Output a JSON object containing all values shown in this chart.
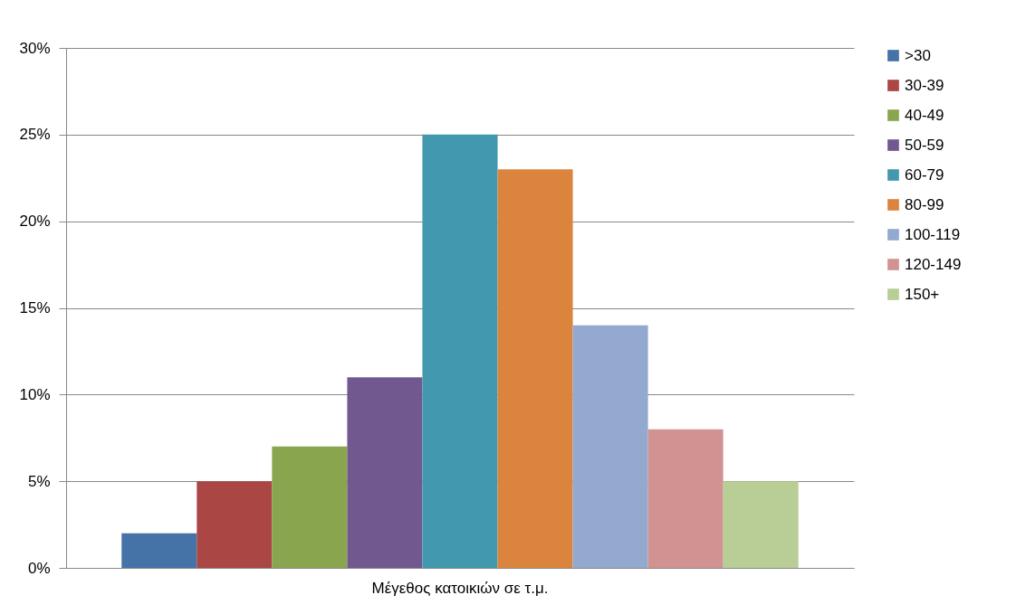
{
  "chart_data": {
    "type": "bar",
    "xlabel": null,
    "categories": [
      "Μέγεθος κατοικιών σε τ.μ."
    ],
    "series": [
      {
        "name": ">30",
        "color": "#4572a7",
        "values": [
          2
        ]
      },
      {
        "name": "30-39",
        "color": "#aa4643",
        "values": [
          5
        ]
      },
      {
        "name": "40-49",
        "color": "#89a54e",
        "values": [
          7
        ]
      },
      {
        "name": "50-59",
        "color": "#71588f",
        "values": [
          11
        ]
      },
      {
        "name": "60-79",
        "color": "#4198af",
        "values": [
          25
        ]
      },
      {
        "name": "80-99",
        "color": "#db843d",
        "values": [
          23
        ]
      },
      {
        "name": "100-119",
        "color": "#93a9cf",
        "values": [
          14
        ]
      },
      {
        "name": "120-149",
        "color": "#d19392",
        "values": [
          8
        ]
      },
      {
        "name": "150+",
        "color": "#b9cd96",
        "values": [
          5
        ]
      }
    ],
    "ylim": [
      0,
      30
    ],
    "yticks": [
      {
        "value": 0,
        "label": "0%"
      },
      {
        "value": 5,
        "label": "5%"
      },
      {
        "value": 10,
        "label": "10%"
      },
      {
        "value": 15,
        "label": "15%"
      },
      {
        "value": 20,
        "label": "20%"
      },
      {
        "value": 25,
        "label": "25%"
      },
      {
        "value": 30,
        "label": "30%"
      }
    ],
    "grid": "y",
    "legend": "right"
  }
}
